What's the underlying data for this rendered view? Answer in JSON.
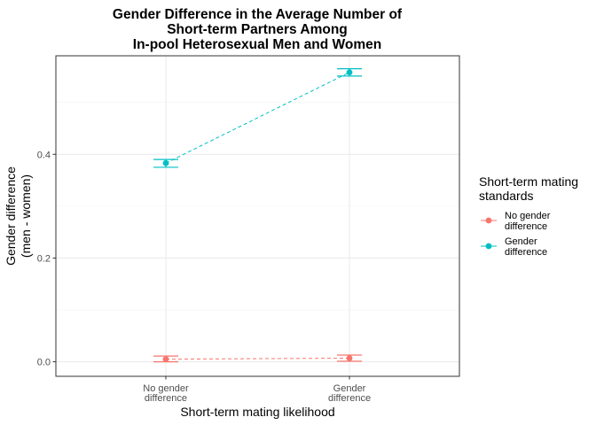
{
  "chart_data": {
    "type": "line",
    "title": [
      "Gender Difference in the Average Number of",
      "Short-term Partners Among",
      "In-pool Heterosexual Men and Women"
    ],
    "xlabel": "Short-term mating likelihood",
    "ylabel": [
      "Gender difference",
      "(men - women)"
    ],
    "categories": [
      [
        "No gender",
        "difference"
      ],
      [
        "Gender",
        "difference"
      ]
    ],
    "ylim": [
      -0.028,
      0.59
    ],
    "yticks": [
      0.0,
      0.2,
      0.4
    ],
    "ytick_labels": [
      "0.0",
      "0.2",
      "0.4"
    ],
    "grid": true,
    "legend": {
      "position": "right",
      "title": [
        "Short-term mating",
        "standards"
      ],
      "entries": [
        [
          "No gender",
          "difference"
        ],
        [
          "Gender",
          "difference"
        ]
      ]
    },
    "series": [
      {
        "name": "No gender difference",
        "color": "#F8766D",
        "values": [
          0.005,
          0.007
        ],
        "error_low": [
          0.0,
          0.001
        ],
        "error_high": [
          0.011,
          0.013
        ]
      },
      {
        "name": "Gender difference",
        "color": "#00BFC4",
        "values": [
          0.383,
          0.558
        ],
        "error_low": [
          0.375,
          0.551
        ],
        "error_high": [
          0.39,
          0.565
        ]
      }
    ]
  }
}
